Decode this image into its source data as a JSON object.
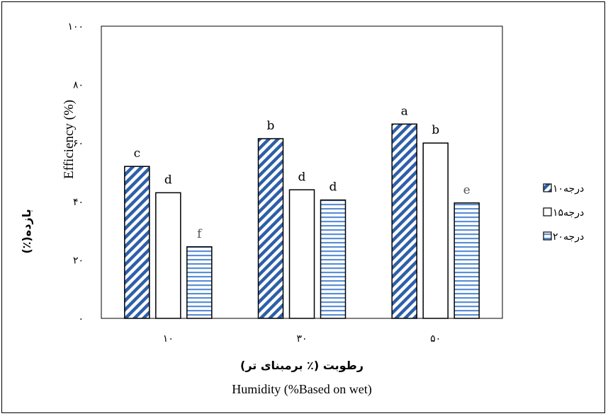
{
  "chart_data": {
    "type": "bar",
    "categories": [
      "۱۰",
      "۳۰",
      "۵۰"
    ],
    "y_ticks": [
      "۰",
      "۲۰",
      "۴۰",
      "۶۰",
      "۸۰",
      "۱۰۰"
    ],
    "ylim": [
      0,
      100
    ],
    "grid": false,
    "legend_position": "right",
    "xlabel_fa": "رطوبت (٪ برمبنای تر)",
    "xlabel_en": "Humidity (%Based on wet)",
    "ylabel_en": "Efficiency (%)",
    "ylabel_fa": "بازده(٪)",
    "series": [
      {
        "name": "۱۰درجه",
        "values": [
          52,
          61.5,
          66.5
        ],
        "labels": [
          "c",
          "b",
          "a"
        ],
        "pattern": "diagonal",
        "color": "#2E5FA8"
      },
      {
        "name": "۱۵درجه",
        "values": [
          43,
          44,
          60
        ],
        "labels": [
          "d",
          "d",
          "b"
        ],
        "pattern": "none",
        "color": "#000000"
      },
      {
        "name": "۲۰درجه",
        "values": [
          24.5,
          40.5,
          39.5
        ],
        "labels": [
          "f",
          "d",
          "e"
        ],
        "pattern": "horizontal",
        "color": "#2E5FA8"
      }
    ]
  }
}
